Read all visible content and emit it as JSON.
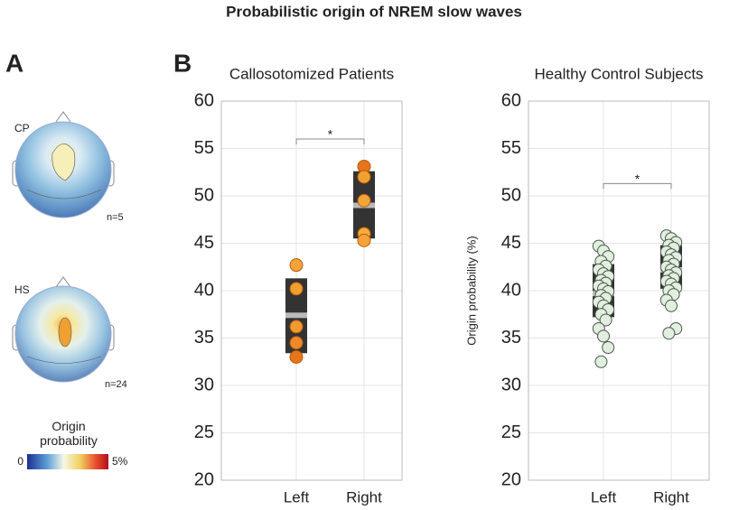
{
  "title": "Probabilistic origin of NREM slow waves",
  "panel_a": {
    "label": "A",
    "maps": [
      {
        "label": "CP",
        "n": "n=5"
      },
      {
        "label": "HS",
        "n": "n=24"
      }
    ],
    "colorbar": {
      "title": "Origin probability",
      "lim": [
        0,
        5
      ],
      "ticks": [
        0,
        {
          "value": 5,
          "label": "5%"
        }
      ]
    }
  },
  "panel_b_label": "B",
  "chart_data": [
    {
      "type": "box-strip",
      "title": "Callosotomized Patients",
      "categories": [
        "Left",
        "Right"
      ],
      "boxes": [
        {
          "q1": 33.4,
          "median": 37.4,
          "q3": 41.3
        },
        {
          "q1": 45.5,
          "median": 49.0,
          "q3": 52.6
        }
      ],
      "points": [
        [
          42.7,
          40.2,
          36.2,
          34.5,
          33.0
        ],
        [
          53.1,
          52.0,
          49.5,
          46.0,
          45.3
        ]
      ],
      "point_colors": [
        [
          "#f2a43a",
          "#f0a030",
          "#f09a30",
          "#ee8a28",
          "#e8741a"
        ],
        [
          "#e8741a",
          "#f0a030",
          "#f2a43a",
          "#f4ac3e",
          "#f2a43a"
        ]
      ],
      "box_color": "#333333",
      "median_color": "#bbbbbb",
      "annotation": {
        "text": "*",
        "y": 56
      },
      "ylim": [
        20,
        60
      ],
      "yticks": [
        20,
        25,
        30,
        35,
        40,
        45,
        50,
        55,
        60
      ],
      "grid": true
    },
    {
      "type": "box-strip",
      "title": "Healthy Control Subjects",
      "ylabel": "Origin probability (%)",
      "categories": [
        "Left",
        "Right"
      ],
      "boxes": [
        {
          "q1": 37.2,
          "median": 39.7,
          "q3": 42.8
        },
        {
          "q1": 40.2,
          "median": 42.2,
          "q3": 44.8
        }
      ],
      "points": [
        [
          44.7,
          44.2,
          43.6,
          43.1,
          42.6,
          42.2,
          41.8,
          41.5,
          41.1,
          40.8,
          40.5,
          40.2,
          39.9,
          39.5,
          39.2,
          38.8,
          38.4,
          38.0,
          37.5,
          36.9,
          36.0,
          35.2,
          34.0,
          32.5
        ],
        [
          45.8,
          45.5,
          45.1,
          44.8,
          44.5,
          44.1,
          43.8,
          43.5,
          43.2,
          42.8,
          42.5,
          42.2,
          41.9,
          41.6,
          41.3,
          41.0,
          40.7,
          40.3,
          40.0,
          39.6,
          39.0,
          38.4,
          36.0,
          35.5
        ]
      ],
      "point_color": "#e2eee0",
      "box_color": "#333333",
      "median_color": "#bbbbbb",
      "annotation": {
        "text": "*",
        "y": 51.3
      },
      "ylim": [
        20,
        60
      ],
      "yticks": [
        20,
        25,
        30,
        35,
        40,
        45,
        50,
        55,
        60
      ],
      "grid": true
    }
  ]
}
